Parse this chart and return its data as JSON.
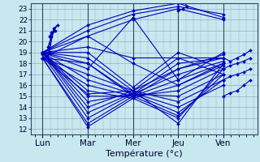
{
  "background_color": "#c8e8f0",
  "grid_color": "#99aabb",
  "line_color": "#0000bb",
  "marker": "D",
  "markersize": 2.0,
  "linewidth": 0.8,
  "ylim": [
    11.5,
    23.5
  ],
  "yticks": [
    12,
    13,
    14,
    15,
    16,
    17,
    18,
    19,
    20,
    21,
    22,
    23
  ],
  "days": [
    "Lun",
    "Mar",
    "Mer",
    "Jeu",
    "Ven"
  ],
  "xlabel": "Température (°c)",
  "xlabel_fontsize": 8,
  "tick_fontsize": 6.5,
  "day_fontsize": 7.5,
  "series": [
    [
      18.5,
      12.2,
      14.8,
      13.0,
      17.5
    ],
    [
      18.5,
      12.5,
      15.0,
      13.2,
      17.0
    ],
    [
      18.8,
      13.0,
      15.2,
      13.5,
      16.5
    ],
    [
      19.0,
      13.5,
      15.3,
      14.0,
      16.0
    ],
    [
      19.0,
      14.0,
      15.5,
      14.5,
      16.5
    ],
    [
      19.0,
      14.5,
      15.2,
      15.0,
      17.0
    ],
    [
      19.0,
      15.0,
      15.0,
      15.5,
      17.5
    ],
    [
      19.0,
      15.5,
      14.8,
      16.0,
      17.8
    ],
    [
      18.5,
      16.0,
      15.0,
      16.5,
      18.0
    ],
    [
      19.0,
      16.5,
      15.2,
      17.0,
      18.2
    ],
    [
      18.5,
      17.0,
      15.5,
      17.5,
      18.5
    ],
    [
      19.0,
      17.5,
      22.2,
      16.5,
      19.0
    ],
    [
      18.5,
      18.0,
      15.2,
      18.0,
      18.5
    ],
    [
      19.0,
      18.5,
      15.5,
      18.5,
      18.5
    ],
    [
      19.0,
      19.0,
      15.8,
      19.0,
      17.5
    ],
    [
      19.0,
      19.5,
      18.5,
      18.5,
      17.0
    ],
    [
      19.0,
      20.5,
      18.0,
      16.0,
      18.0
    ],
    [
      19.0,
      21.0,
      22.5,
      23.2,
      22.5
    ],
    [
      19.0,
      21.5,
      22.8,
      23.5,
      22.2
    ],
    [
      18.5,
      20.5,
      22.0,
      23.0,
      22.0
    ],
    [
      19.0,
      18.0,
      15.0,
      17.5,
      18.8
    ],
    [
      18.5,
      15.2,
      15.5,
      12.5,
      18.0
    ]
  ],
  "mar_loop": [
    [
      [
        0.15,
        0.25,
        0.33,
        0.25,
        0.15
      ],
      [
        19.0,
        21.2,
        21.5,
        21.0,
        20.5
      ]
    ],
    [
      [
        0.12,
        0.2,
        0.28,
        0.2,
        0.12
      ],
      [
        18.5,
        20.8,
        21.0,
        20.5,
        19.5
      ]
    ]
  ],
  "jeu_high": [
    [
      [
        3.0,
        3.1,
        3.2,
        3.1,
        3.0
      ],
      [
        23.5,
        23.8,
        23.2,
        23.0,
        22.8
      ]
    ]
  ],
  "ven_spread": [
    [
      [
        4.0,
        4.15,
        4.3,
        4.45,
        4.6
      ],
      [
        17.5,
        17.8,
        18.0,
        18.2,
        18.5
      ]
    ],
    [
      [
        4.0,
        4.15,
        4.3,
        4.45,
        4.6
      ],
      [
        15.0,
        15.3,
        15.5,
        16.0,
        16.5
      ]
    ],
    [
      [
        4.0,
        4.15,
        4.3,
        4.45,
        4.6
      ],
      [
        18.5,
        18.2,
        18.5,
        18.8,
        19.2
      ]
    ],
    [
      [
        4.0,
        4.15,
        4.3,
        4.45,
        4.6
      ],
      [
        16.5,
        16.8,
        17.0,
        17.2,
        17.5
      ]
    ]
  ]
}
